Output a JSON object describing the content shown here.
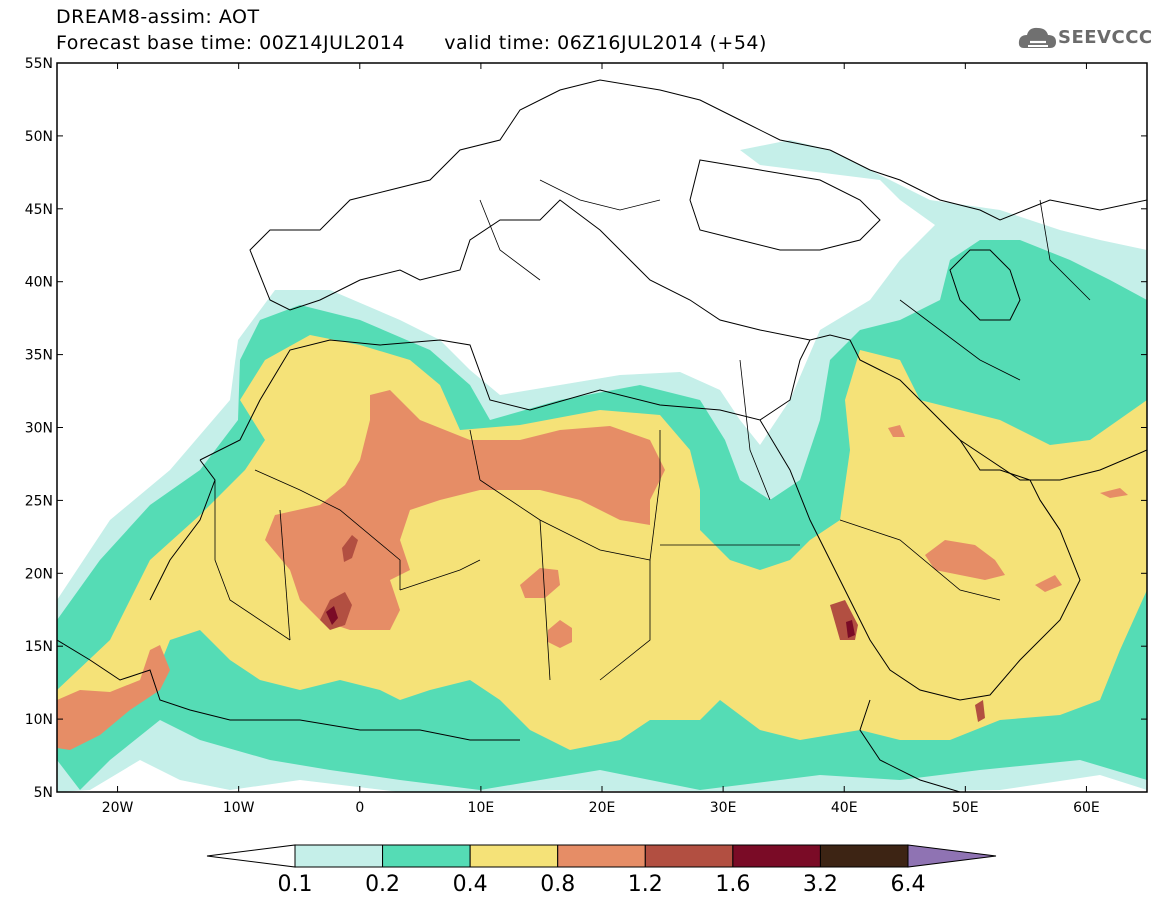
{
  "title": {
    "line1": "DREAM8-assim: AOT",
    "base_time_label": "Forecast base time: 00Z14JUL2014",
    "valid_time_label": "valid time: 06Z16JUL2014 (+54)"
  },
  "logo": {
    "text": "SEEVCCC",
    "icon": "cloud-logo-icon"
  },
  "map": {
    "lon_range": [
      -25,
      65
    ],
    "lat_range": [
      5,
      55
    ],
    "lat_ticks": [
      {
        "value": 55,
        "label": "55N"
      },
      {
        "value": 50,
        "label": "50N"
      },
      {
        "value": 45,
        "label": "45N"
      },
      {
        "value": 40,
        "label": "40N"
      },
      {
        "value": 35,
        "label": "35N"
      },
      {
        "value": 30,
        "label": "30N"
      },
      {
        "value": 25,
        "label": "25N"
      },
      {
        "value": 20,
        "label": "20N"
      },
      {
        "value": 15,
        "label": "15N"
      },
      {
        "value": 10,
        "label": "10N"
      },
      {
        "value": 5,
        "label": "5N"
      }
    ],
    "lon_ticks": [
      {
        "value": -20,
        "label": "20W"
      },
      {
        "value": -10,
        "label": "10W"
      },
      {
        "value": 0,
        "label": "0"
      },
      {
        "value": 10,
        "label": "10E"
      },
      {
        "value": 20,
        "label": "20E"
      },
      {
        "value": 30,
        "label": "30E"
      },
      {
        "value": 40,
        "label": "40E"
      },
      {
        "value": 50,
        "label": "50E"
      },
      {
        "value": 60,
        "label": "60E"
      }
    ]
  },
  "colorbar": {
    "levels": [
      "0.1",
      "0.2",
      "0.4",
      "0.8",
      "1.2",
      "1.6",
      "3.2",
      "6.4"
    ],
    "colors": [
      "#ffffff",
      "#c5efe9",
      "#55dcb5",
      "#f5e278",
      "#e68d66",
      "#b24f41",
      "#7a0b26",
      "#3d2414",
      "#8f73b3"
    ],
    "extend": "both"
  }
}
